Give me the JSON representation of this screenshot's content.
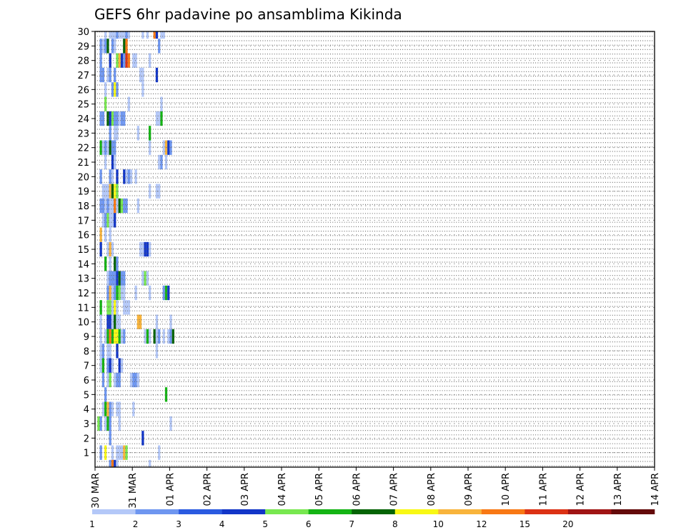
{
  "chart_data": {
    "type": "heatmap",
    "title": "GEFS 6hr padavine po ansamblima Kikinda",
    "x_tick_labels": [
      "30 MAR",
      "31 MAR",
      "01 APR",
      "02 APR",
      "03 APR",
      "04 APR",
      "05 APR",
      "06 APR",
      "07 APR",
      "08 APR",
      "09 APR",
      "10 APR",
      "11 APR",
      "12 APR",
      "13 APR",
      "14 APR"
    ],
    "y_tick_labels": [
      "1",
      "2",
      "3",
      "4",
      "5",
      "6",
      "7",
      "8",
      "9",
      "10",
      "11",
      "12",
      "13",
      "14",
      "15",
      "16",
      "17",
      "18",
      "19",
      "20",
      "21",
      "22",
      "23",
      "24",
      "25",
      "26",
      "27",
      "28",
      "29",
      "30"
    ],
    "xlim": [
      0,
      60
    ],
    "ylim": [
      0,
      30
    ],
    "x_step_hours": 6,
    "y_meaning": "ensemble member",
    "grid": true,
    "colorbar": {
      "placement": "bottom",
      "labels": [
        "1",
        "2",
        "3",
        "4",
        "5",
        "6",
        "7",
        "8",
        "10",
        "12",
        "15",
        "20"
      ],
      "colors": [
        "#b4c8f8",
        "#6e96f0",
        "#2a5ae0",
        "#1236c8",
        "#78e850",
        "#14b414",
        "#056405",
        "#f8f814",
        "#f8b43c",
        "#f87814",
        "#dc3214",
        "#a01414",
        "#640a0a"
      ]
    },
    "cells": [
      [
        30,
        4,
        0
      ],
      [
        30,
        6,
        0
      ],
      [
        30,
        7,
        0
      ],
      [
        30,
        8,
        0
      ],
      [
        30,
        9,
        1
      ],
      [
        30,
        10,
        0
      ],
      [
        30,
        11,
        0
      ],
      [
        30,
        12,
        0
      ],
      [
        30,
        13,
        1
      ],
      [
        30,
        14,
        0
      ],
      [
        30,
        20,
        0
      ],
      [
        30,
        22,
        0
      ],
      [
        30,
        25,
        9
      ],
      [
        30,
        26,
        3
      ],
      [
        30,
        28,
        0
      ],
      [
        30,
        29,
        0
      ],
      [
        29,
        2,
        1
      ],
      [
        29,
        3,
        0
      ],
      [
        29,
        4,
        1
      ],
      [
        29,
        5,
        6
      ],
      [
        29,
        7,
        1
      ],
      [
        29,
        8,
        0
      ],
      [
        29,
        12,
        6
      ],
      [
        29,
        13,
        9
      ],
      [
        29,
        27,
        1
      ],
      [
        28,
        2,
        1
      ],
      [
        28,
        6,
        3
      ],
      [
        28,
        9,
        4
      ],
      [
        28,
        10,
        8
      ],
      [
        28,
        11,
        3
      ],
      [
        28,
        12,
        1
      ],
      [
        28,
        13,
        10
      ],
      [
        28,
        14,
        9
      ],
      [
        28,
        16,
        0
      ],
      [
        28,
        17,
        0
      ],
      [
        28,
        23,
        0
      ],
      [
        27,
        2,
        1
      ],
      [
        27,
        3,
        1
      ],
      [
        27,
        5,
        0
      ],
      [
        27,
        6,
        1
      ],
      [
        27,
        8,
        1
      ],
      [
        27,
        19,
        0
      ],
      [
        27,
        20,
        0
      ],
      [
        27,
        26,
        3
      ],
      [
        26,
        4,
        0
      ],
      [
        26,
        7,
        1
      ],
      [
        26,
        8,
        7
      ],
      [
        26,
        9,
        1
      ],
      [
        26,
        20,
        0
      ],
      [
        25,
        4,
        4
      ],
      [
        25,
        14,
        0
      ],
      [
        25,
        28,
        0
      ],
      [
        24,
        2,
        1
      ],
      [
        24,
        3,
        1
      ],
      [
        24,
        5,
        6
      ],
      [
        24,
        6,
        3
      ],
      [
        24,
        7,
        4
      ],
      [
        24,
        8,
        1
      ],
      [
        24,
        9,
        1
      ],
      [
        24,
        10,
        0
      ],
      [
        24,
        11,
        1
      ],
      [
        24,
        12,
        1
      ],
      [
        24,
        26,
        0
      ],
      [
        24,
        27,
        0
      ],
      [
        24,
        28,
        5
      ],
      [
        23,
        6,
        1
      ],
      [
        23,
        8,
        0
      ],
      [
        23,
        9,
        0
      ],
      [
        23,
        18,
        0
      ],
      [
        23,
        23,
        5
      ],
      [
        22,
        2,
        5
      ],
      [
        22,
        3,
        0
      ],
      [
        22,
        4,
        1
      ],
      [
        22,
        5,
        0
      ],
      [
        22,
        6,
        6
      ],
      [
        22,
        7,
        1
      ],
      [
        22,
        8,
        1
      ],
      [
        22,
        23,
        0
      ],
      [
        22,
        29,
        0
      ],
      [
        22,
        30,
        8
      ],
      [
        22,
        31,
        3
      ],
      [
        22,
        32,
        1
      ],
      [
        21,
        4,
        0
      ],
      [
        21,
        7,
        3
      ],
      [
        21,
        8,
        0
      ],
      [
        21,
        27,
        0
      ],
      [
        21,
        28,
        1
      ],
      [
        21,
        30,
        0
      ],
      [
        20,
        2,
        1
      ],
      [
        20,
        6,
        1
      ],
      [
        20,
        7,
        0
      ],
      [
        20,
        9,
        3
      ],
      [
        20,
        12,
        3
      ],
      [
        20,
        13,
        0
      ],
      [
        20,
        14,
        1
      ],
      [
        20,
        15,
        0
      ],
      [
        20,
        17,
        0
      ],
      [
        19,
        3,
        0
      ],
      [
        19,
        4,
        0
      ],
      [
        19,
        5,
        0
      ],
      [
        19,
        6,
        8
      ],
      [
        19,
        7,
        6
      ],
      [
        19,
        8,
        7
      ],
      [
        19,
        9,
        4
      ],
      [
        19,
        23,
        0
      ],
      [
        19,
        26,
        0
      ],
      [
        19,
        27,
        0
      ],
      [
        18,
        2,
        1
      ],
      [
        18,
        3,
        1
      ],
      [
        18,
        4,
        0
      ],
      [
        18,
        5,
        1
      ],
      [
        18,
        6,
        0
      ],
      [
        18,
        7,
        0
      ],
      [
        18,
        8,
        9
      ],
      [
        18,
        9,
        0
      ],
      [
        18,
        10,
        6
      ],
      [
        18,
        11,
        4
      ],
      [
        18,
        12,
        1
      ],
      [
        18,
        13,
        1
      ],
      [
        18,
        18,
        0
      ],
      [
        17,
        3,
        0
      ],
      [
        17,
        4,
        1
      ],
      [
        17,
        5,
        4
      ],
      [
        17,
        6,
        0
      ],
      [
        17,
        7,
        0
      ],
      [
        17,
        8,
        3
      ],
      [
        16,
        2,
        8
      ],
      [
        16,
        4,
        0
      ],
      [
        16,
        6,
        0
      ],
      [
        15,
        2,
        3
      ],
      [
        15,
        5,
        0
      ],
      [
        15,
        6,
        8
      ],
      [
        15,
        7,
        0
      ],
      [
        15,
        19,
        0
      ],
      [
        15,
        20,
        0
      ],
      [
        15,
        21,
        3
      ],
      [
        15,
        22,
        3
      ],
      [
        15,
        23,
        0
      ],
      [
        14,
        4,
        5
      ],
      [
        14,
        6,
        0
      ],
      [
        14,
        8,
        6
      ],
      [
        14,
        9,
        1
      ],
      [
        13,
        5,
        0
      ],
      [
        13,
        6,
        1
      ],
      [
        13,
        7,
        1
      ],
      [
        13,
        8,
        1
      ],
      [
        13,
        9,
        3
      ],
      [
        13,
        10,
        6
      ],
      [
        13,
        11,
        1
      ],
      [
        13,
        12,
        1
      ],
      [
        13,
        20,
        0
      ],
      [
        13,
        21,
        4
      ],
      [
        13,
        22,
        0
      ],
      [
        12,
        5,
        1
      ],
      [
        12,
        6,
        8
      ],
      [
        12,
        7,
        0
      ],
      [
        12,
        8,
        1
      ],
      [
        12,
        9,
        5
      ],
      [
        12,
        10,
        4
      ],
      [
        12,
        11,
        0
      ],
      [
        12,
        12,
        0
      ],
      [
        12,
        17,
        0
      ],
      [
        12,
        23,
        0
      ],
      [
        12,
        29,
        1
      ],
      [
        12,
        30,
        5
      ],
      [
        12,
        31,
        3
      ],
      [
        11,
        2,
        5
      ],
      [
        11,
        5,
        4
      ],
      [
        11,
        6,
        4
      ],
      [
        11,
        7,
        0
      ],
      [
        11,
        8,
        7
      ],
      [
        11,
        9,
        0
      ],
      [
        11,
        12,
        0
      ],
      [
        11,
        13,
        0
      ],
      [
        11,
        14,
        0
      ],
      [
        10,
        2,
        0
      ],
      [
        10,
        5,
        3
      ],
      [
        10,
        6,
        3
      ],
      [
        10,
        7,
        0
      ],
      [
        10,
        8,
        6
      ],
      [
        10,
        9,
        0
      ],
      [
        10,
        10,
        0
      ],
      [
        10,
        18,
        8
      ],
      [
        10,
        19,
        8
      ],
      [
        10,
        26,
        0
      ],
      [
        10,
        32,
        0
      ],
      [
        9,
        2,
        0
      ],
      [
        9,
        4,
        0
      ],
      [
        9,
        5,
        5
      ],
      [
        9,
        6,
        9
      ],
      [
        9,
        7,
        5
      ],
      [
        9,
        8,
        7
      ],
      [
        9,
        9,
        7
      ],
      [
        9,
        10,
        5
      ],
      [
        9,
        11,
        0
      ],
      [
        9,
        12,
        1
      ],
      [
        9,
        21,
        0
      ],
      [
        9,
        22,
        5
      ],
      [
        9,
        23,
        0
      ],
      [
        9,
        25,
        6
      ],
      [
        9,
        26,
        0
      ],
      [
        9,
        27,
        1
      ],
      [
        9,
        29,
        0
      ],
      [
        9,
        31,
        0
      ],
      [
        9,
        32,
        1
      ],
      [
        9,
        33,
        6
      ],
      [
        8,
        2,
        0
      ],
      [
        8,
        3,
        1
      ],
      [
        8,
        5,
        0
      ],
      [
        8,
        6,
        0
      ],
      [
        8,
        9,
        3
      ],
      [
        8,
        26,
        0
      ],
      [
        7,
        2,
        0
      ],
      [
        7,
        3,
        5
      ],
      [
        7,
        5,
        1
      ],
      [
        7,
        6,
        3
      ],
      [
        7,
        7,
        0
      ],
      [
        7,
        10,
        3
      ],
      [
        7,
        11,
        0
      ],
      [
        6,
        3,
        1
      ],
      [
        6,
        5,
        0
      ],
      [
        6,
        6,
        4
      ],
      [
        6,
        8,
        0
      ],
      [
        6,
        9,
        1
      ],
      [
        6,
        10,
        1
      ],
      [
        6,
        15,
        0
      ],
      [
        6,
        16,
        1
      ],
      [
        6,
        17,
        1
      ],
      [
        6,
        18,
        0
      ],
      [
        5,
        4,
        1
      ],
      [
        5,
        30,
        5
      ],
      [
        4,
        3,
        0
      ],
      [
        4,
        4,
        5
      ],
      [
        4,
        5,
        8
      ],
      [
        4,
        6,
        1
      ],
      [
        4,
        7,
        0
      ],
      [
        4,
        9,
        0
      ],
      [
        4,
        10,
        0
      ],
      [
        4,
        16,
        0
      ],
      [
        3,
        1,
        4
      ],
      [
        3,
        2,
        1
      ],
      [
        3,
        4,
        0
      ],
      [
        3,
        5,
        5
      ],
      [
        3,
        6,
        1
      ],
      [
        3,
        10,
        0
      ],
      [
        3,
        32,
        0
      ],
      [
        2,
        6,
        1
      ],
      [
        2,
        20,
        3
      ],
      [
        1,
        2,
        1
      ],
      [
        1,
        4,
        7
      ],
      [
        1,
        7,
        0
      ],
      [
        1,
        9,
        0
      ],
      [
        1,
        10,
        0
      ],
      [
        1,
        11,
        0
      ],
      [
        1,
        12,
        8
      ],
      [
        1,
        13,
        4
      ],
      [
        1,
        27,
        0
      ],
      [
        0,
        6,
        1
      ],
      [
        0,
        7,
        9
      ],
      [
        0,
        8,
        3
      ],
      [
        0,
        9,
        0
      ],
      [
        0,
        23,
        0
      ]
    ]
  }
}
